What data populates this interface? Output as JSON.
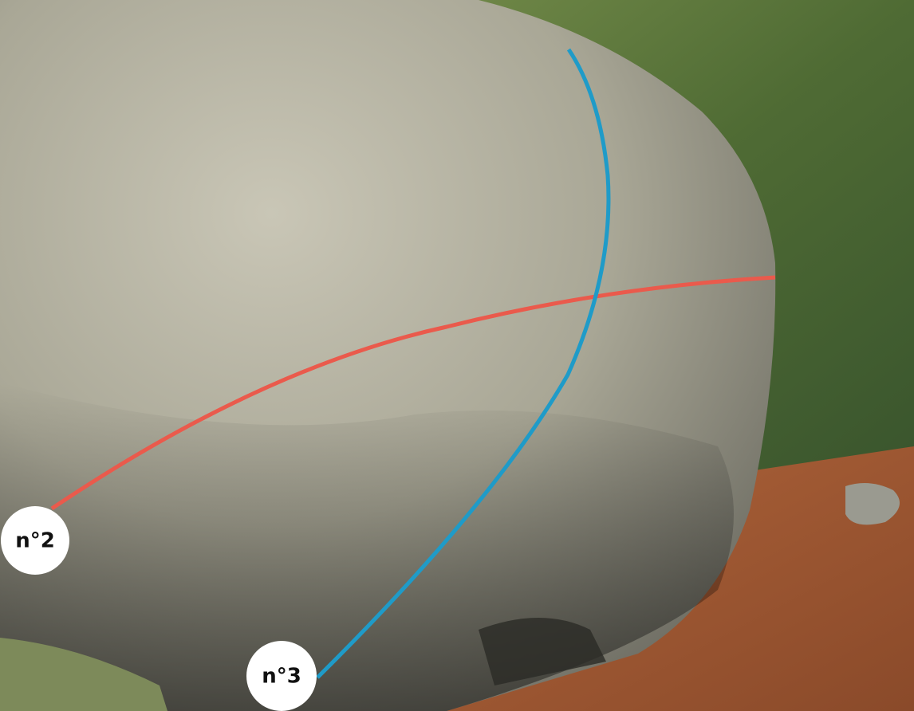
{
  "routes": [
    {
      "label": "n°2",
      "color": "#ea5a4c"
    },
    {
      "label": "n°3",
      "color": "#1f9bc8"
    }
  ]
}
